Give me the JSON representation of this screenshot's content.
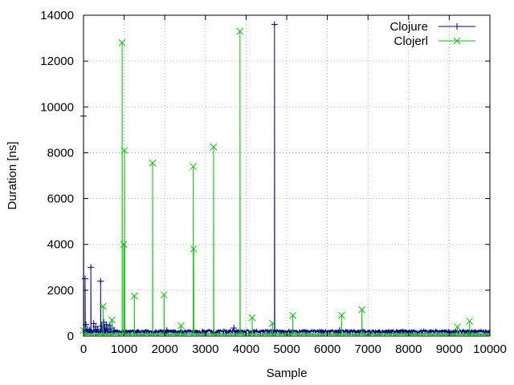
{
  "chart_data": {
    "type": "line",
    "xlabel": "Sample",
    "ylabel": "Duration [ns]",
    "xlim": [
      0,
      10000
    ],
    "ylim": [
      0,
      14000
    ],
    "xticks": [
      0,
      1000,
      2000,
      3000,
      4000,
      5000,
      6000,
      7000,
      8000,
      9000,
      10000
    ],
    "yticks": [
      0,
      2000,
      4000,
      6000,
      8000,
      10000,
      12000,
      14000
    ],
    "grid": true,
    "legend_position": "top-right",
    "baseline": {
      "Clojure": 200,
      "Clojerl": 80
    },
    "series": [
      {
        "name": "Clojure",
        "color": "#00008b",
        "marker": "+",
        "points": [
          [
            0,
            9600
          ],
          [
            40,
            2500
          ],
          [
            60,
            500
          ],
          [
            100,
            300
          ],
          [
            150,
            250
          ],
          [
            180,
            3000
          ],
          [
            250,
            550
          ],
          [
            300,
            400
          ],
          [
            350,
            300
          ],
          [
            420,
            2400
          ],
          [
            450,
            450
          ],
          [
            500,
            600
          ],
          [
            520,
            350
          ],
          [
            560,
            500
          ],
          [
            600,
            300
          ],
          [
            650,
            450
          ],
          [
            700,
            350
          ],
          [
            750,
            250
          ],
          [
            2050,
            250
          ],
          [
            2700,
            200
          ],
          [
            3700,
            350
          ],
          [
            4700,
            13600
          ],
          [
            6300,
            250
          ]
        ]
      },
      {
        "name": "Clojerl",
        "color": "#00c800",
        "marker": "x",
        "points": [
          [
            0,
            250
          ],
          [
            480,
            1300
          ],
          [
            700,
            700
          ],
          [
            950,
            12800
          ],
          [
            990,
            4000
          ],
          [
            1010,
            8100
          ],
          [
            1250,
            1750
          ],
          [
            1700,
            7550
          ],
          [
            1980,
            1800
          ],
          [
            2400,
            450
          ],
          [
            2700,
            7400
          ],
          [
            2710,
            3800
          ],
          [
            3200,
            8250
          ],
          [
            3850,
            13300
          ],
          [
            4150,
            800
          ],
          [
            4650,
            550
          ],
          [
            5150,
            900
          ],
          [
            6350,
            900
          ],
          [
            6850,
            1150
          ],
          [
            9200,
            400
          ],
          [
            9500,
            650
          ]
        ]
      }
    ]
  }
}
